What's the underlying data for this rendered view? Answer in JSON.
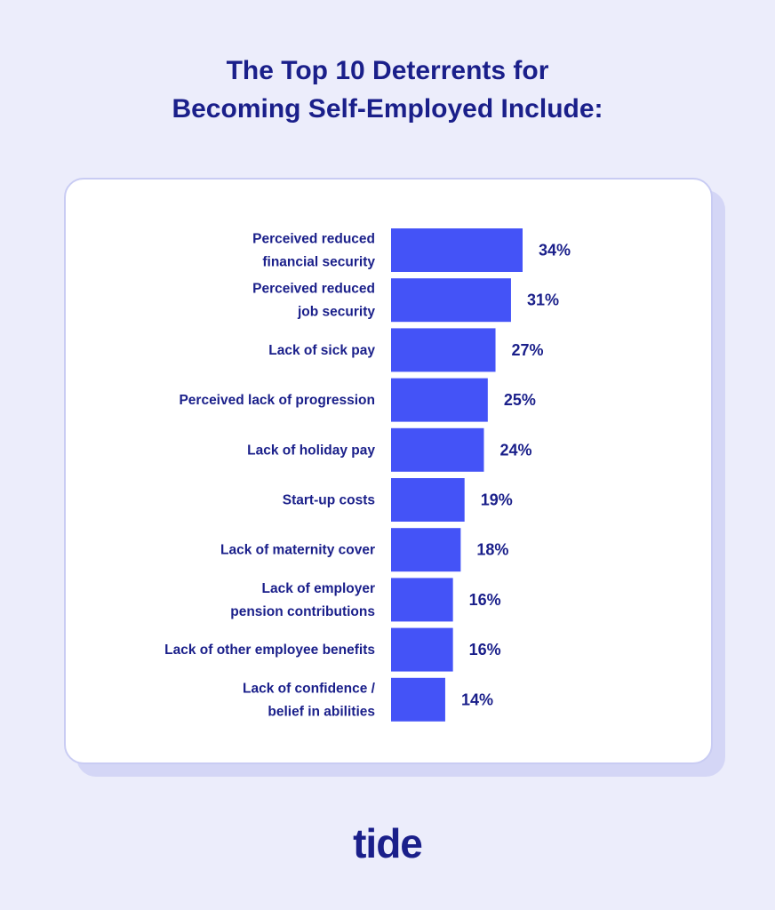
{
  "title_line1": "The Top 10 Deterrents for",
  "title_line2": "Becoming Self-Employed Include:",
  "logo_text": "tide",
  "colors": {
    "background": "#ecedfb",
    "text": "#1a1f8a",
    "bar": "#4453f7",
    "card": "#ffffff"
  },
  "chart_data": {
    "type": "bar",
    "orientation": "horizontal",
    "title": "The Top 10 Deterrents for Becoming Self-Employed Include:",
    "xlabel": "",
    "ylabel": "",
    "grid": false,
    "value_unit": "%",
    "xlim": [
      0,
      34
    ],
    "categories": [
      [
        "Perceived reduced",
        "financial security"
      ],
      [
        "Perceived reduced",
        "job security"
      ],
      [
        "Lack of sick pay"
      ],
      [
        "Perceived lack of progression"
      ],
      [
        "Lack of holiday pay"
      ],
      [
        "Start-up costs"
      ],
      [
        "Lack of maternity cover"
      ],
      [
        "Lack of employer",
        "pension contributions"
      ],
      [
        "Lack of other employee benefits"
      ],
      [
        "Lack of confidence /",
        "belief in abilities"
      ]
    ],
    "values": [
      34,
      31,
      27,
      25,
      24,
      19,
      18,
      16,
      16,
      14
    ],
    "value_labels": [
      "34%",
      "31%",
      "27%",
      "25%",
      "24%",
      "19%",
      "18%",
      "16%",
      "16%",
      "14%"
    ]
  }
}
